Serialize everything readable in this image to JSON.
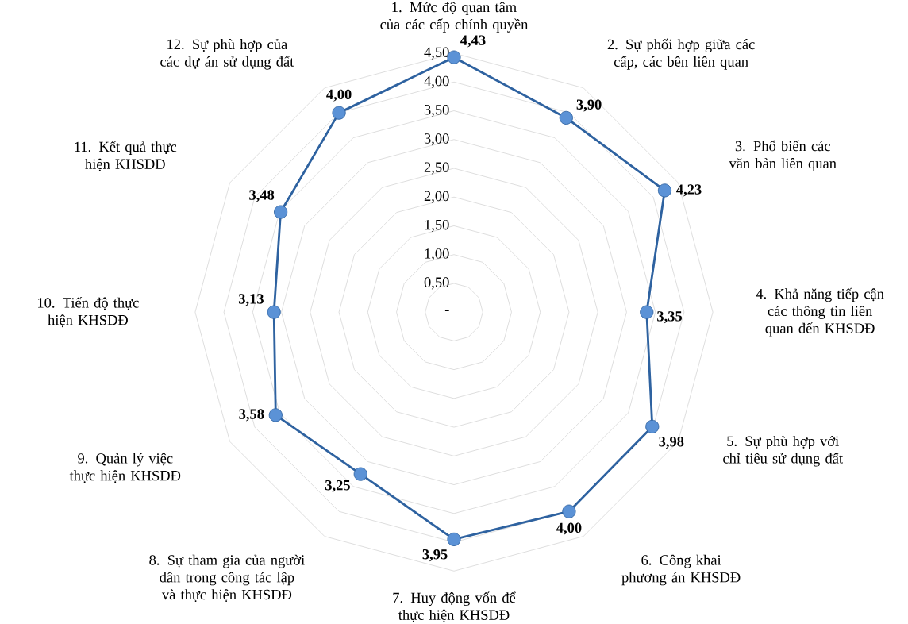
{
  "chart_data": {
    "type": "radar",
    "categories": [
      "1. Mức độ quan tâm của các cấp chính quyền",
      "2. Sự phối hợp giữa các cấp, các bên liên quan",
      "3. Phổ biến các văn bản liên quan",
      "4. Khả năng tiếp cận các thông tin liên quan đến KHSDĐ",
      "5. Sự phù hợp với chỉ tiêu sử dụng đất",
      "6. Công khai phương án KHSDĐ",
      "7. Huy động vốn để thực hiện KHSDĐ",
      "8. Sự tham gia của người dân trong công tác lập và thực hiện KHSDĐ",
      "9. Quản lý việc thực hiện KHSDĐ",
      "10. Tiến độ thực hiện KHSDĐ",
      "11. Kết quả thực hiện KHSDĐ",
      "12. Sự phù hợp của các dự án sử dụng đất"
    ],
    "series": [
      {
        "color": "#2e62a0",
        "values": [
          4.43,
          3.9,
          4.23,
          3.35,
          3.98,
          4.0,
          3.95,
          3.25,
          3.58,
          3.13,
          3.48,
          4.0
        ],
        "value_labels": [
          "4,43",
          "3,90",
          "4,23",
          "3,35",
          "3,98",
          "4,00",
          "3,95",
          "3,25",
          "3,58",
          "3,13",
          "3,48",
          "4,00"
        ]
      }
    ],
    "ylim": [
      0,
      4.5
    ],
    "yticks": [
      {
        "value": 0,
        "label": "-"
      },
      {
        "value": 0.5,
        "label": "0,50"
      },
      {
        "value": 1,
        "label": "1,00"
      },
      {
        "value": 1.5,
        "label": "1,50"
      },
      {
        "value": 2,
        "label": "2,00"
      },
      {
        "value": 2.5,
        "label": "2,50"
      },
      {
        "value": 3,
        "label": "3,00"
      },
      {
        "value": 3.5,
        "label": "3,50"
      },
      {
        "value": 4,
        "label": "4,00"
      },
      {
        "value": 4.5,
        "label": "4,50"
      }
    ],
    "marker": "circle",
    "grid": true
  }
}
